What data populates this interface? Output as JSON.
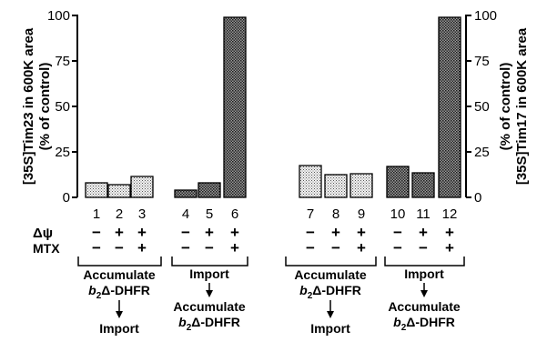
{
  "chart_data": [
    {
      "type": "bar",
      "ylabel_line1": "[35S]Tim23 in 600K area",
      "ylabel_line2": "(% of control)",
      "ylim": [
        0,
        100
      ],
      "yticks": [
        "0",
        "25",
        "50",
        "75",
        "100"
      ],
      "categories": [
        "1",
        "2",
        "3",
        "4",
        "5",
        "6"
      ],
      "values": [
        8,
        7,
        11.5,
        4,
        8,
        99
      ],
      "bar_fill": [
        "light",
        "light",
        "light",
        "dark",
        "dark",
        "dark"
      ]
    },
    {
      "type": "bar",
      "ylabel_line1": "[35S]Tim17 in 600K area",
      "ylabel_line2": "(% of control)",
      "ylim": [
        0,
        100
      ],
      "yticks": [
        "0",
        "25",
        "50",
        "75",
        "100"
      ],
      "categories": [
        "7",
        "8",
        "9",
        "10",
        "11",
        "12"
      ],
      "values": [
        17.5,
        12.5,
        13,
        17,
        13.5,
        99
      ],
      "bar_fill": [
        "light",
        "light",
        "light",
        "dark",
        "dark",
        "dark"
      ]
    }
  ],
  "conditions": {
    "row_labels": [
      "Δψ",
      "MTX"
    ],
    "delta_psi": [
      "−",
      "+",
      "+",
      "−",
      "+",
      "+",
      "−",
      "+",
      "+",
      "−",
      "+",
      "+"
    ],
    "mtx": [
      "−",
      "−",
      "+",
      "−",
      "−",
      "+",
      "−",
      "−",
      "+",
      "−",
      "−",
      "+"
    ]
  },
  "groups": {
    "g1": {
      "line1": "Accumulate",
      "line2_b": "b",
      "line2_sub": "2",
      "line2_rest": "Δ-DHFR",
      "line3": "Import"
    },
    "g2": {
      "line1": "Import",
      "line2": "Accumulate",
      "line3_b": "b",
      "line3_sub": "2",
      "line3_rest": "Δ-DHFR"
    },
    "g3": {
      "line1": "Accumulate",
      "line2_b": "b",
      "line2_sub": "2",
      "line2_rest": "Δ-DHFR",
      "line3": "Import"
    },
    "g4": {
      "line1": "Import",
      "line2": "Accumulate",
      "line3_b": "b",
      "line3_sub": "2",
      "line3_rest": "Δ-DHFR"
    }
  }
}
